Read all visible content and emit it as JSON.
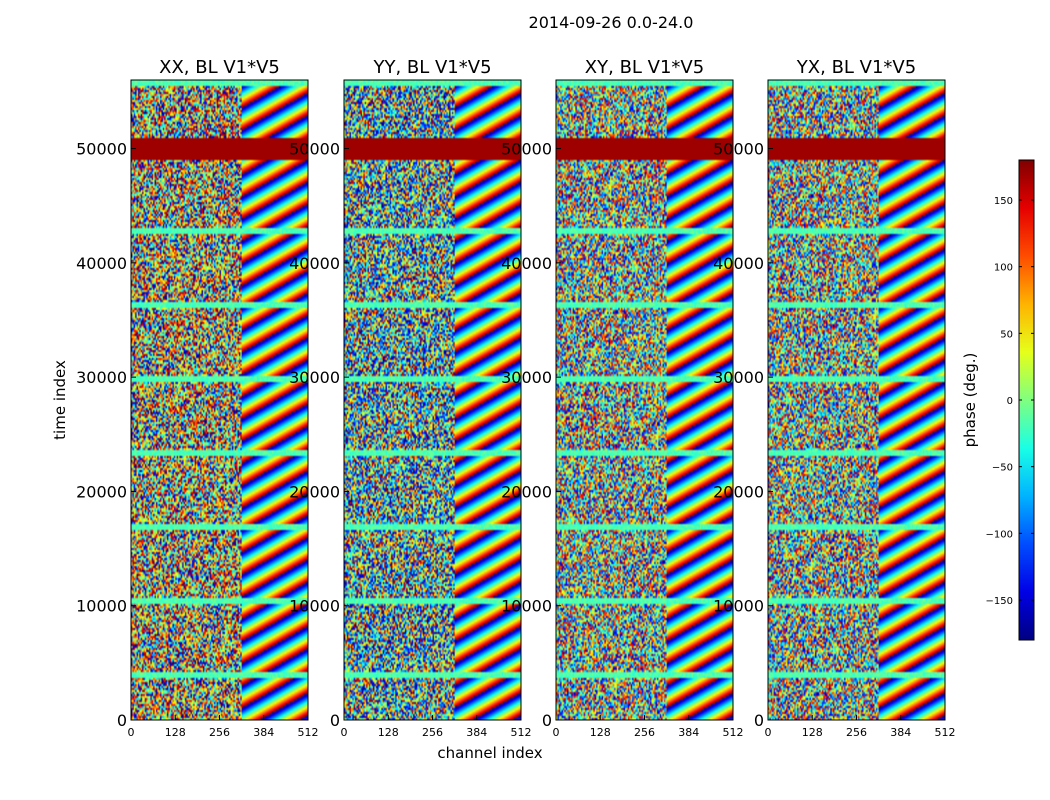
{
  "chart_data": {
    "type": "heatmap",
    "title": "2014-09-26 0.0-24.0",
    "xlabel": "channel index",
    "ylabel": "time index",
    "xlim": [
      0,
      512
    ],
    "ylim": [
      0,
      56000
    ],
    "x_ticks": [
      0,
      128,
      256,
      384,
      512
    ],
    "y_ticks": [
      0,
      10000,
      20000,
      30000,
      40000,
      50000
    ],
    "x_tick_labels": [
      "0",
      "128",
      "256",
      "384",
      "512"
    ],
    "y_tick_labels": [
      "0",
      "10000",
      "20000",
      "30000",
      "40000",
      "50000"
    ],
    "colormap": "jet",
    "colorbar": {
      "label": "phase (deg.)",
      "range": [
        -180,
        180
      ],
      "ticks": [
        150,
        100,
        50,
        0,
        -50,
        -100,
        -150
      ],
      "tick_labels": [
        "150",
        "100",
        "50",
        "0",
        "−50",
        "−100",
        "−150"
      ]
    },
    "panels": [
      {
        "title": "XX, BL V1*V5"
      },
      {
        "title": "YY, BL V1*V5"
      },
      {
        "title": "XY, BL V1*V5"
      },
      {
        "title": "YX, BL V1*V5"
      }
    ]
  }
}
